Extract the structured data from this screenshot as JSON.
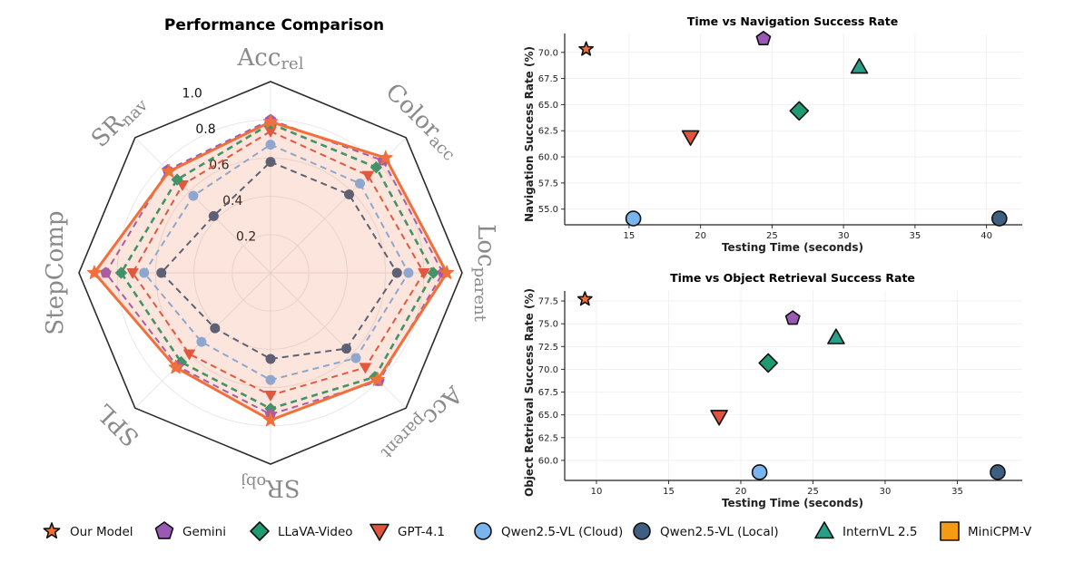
{
  "colors": {
    "Our Model": "#f0703c",
    "Gemini": "#9b59b6",
    "LLaVA-Video": "#1f9a72",
    "GPT-4.1": "#e0533f",
    "Qwen2.5-VL (Cloud)": "#7ab4ee",
    "Qwen2.5-VL (Local)": "#3f5f82",
    "InternVL 2.5": "#26a086",
    "MiniCPM-V": "#f39c12"
  },
  "chart_data": [
    {
      "type": "radar",
      "title": "Performance Comparison",
      "axes": [
        {
          "name": "Acc",
          "sub": "rel"
        },
        {
          "name": "Color",
          "sub": "acc"
        },
        {
          "name": "Loc",
          "sub": "parent"
        },
        {
          "name": "Acc",
          "sub": "parent"
        },
        {
          "name": "SR",
          "sub": "obj"
        },
        {
          "name": "SPL",
          "sub": ""
        },
        {
          "name": "StepComp",
          "sub": ""
        },
        {
          "name": "SR",
          "sub": "nav"
        }
      ],
      "rticks": [
        "0.2",
        "0.4",
        "0.6",
        "0.8",
        "1.0"
      ],
      "rlim": [
        0,
        1.0
      ],
      "series": [
        {
          "name": "Qwen2.5-VL (Local)",
          "values": [
            0.58,
            0.58,
            0.66,
            0.56,
            0.45,
            0.41,
            0.57,
            0.42
          ],
          "marker": "circle"
        },
        {
          "name": "Qwen2.5-VL (Cloud)",
          "values": [
            0.67,
            0.66,
            0.72,
            0.63,
            0.56,
            0.51,
            0.66,
            0.57
          ],
          "marker": "circle"
        },
        {
          "name": "GPT-4.1",
          "values": [
            0.74,
            0.72,
            0.8,
            0.7,
            0.64,
            0.6,
            0.72,
            0.65
          ],
          "marker": "tri_down"
        },
        {
          "name": "LLaVA-Video",
          "values": [
            0.78,
            0.78,
            0.85,
            0.77,
            0.71,
            0.66,
            0.78,
            0.69
          ],
          "marker": "diamond"
        },
        {
          "name": "Gemini",
          "values": [
            0.8,
            0.83,
            0.9,
            0.8,
            0.74,
            0.69,
            0.86,
            0.76
          ],
          "marker": "pentagon"
        },
        {
          "name": "Our Model",
          "values": [
            0.79,
            0.85,
            0.92,
            0.79,
            0.77,
            0.7,
            0.92,
            0.75
          ],
          "marker": "star"
        }
      ]
    },
    {
      "type": "scatter",
      "title": "Time vs Navigation Success Rate",
      "xlabel": "Testing Time (seconds)",
      "ylabel": "Navigation Success Rate (%)",
      "xlim": [
        10.5,
        42.5
      ],
      "ylim": [
        53.5,
        71.8
      ],
      "xticks": [
        15,
        20,
        25,
        30,
        35,
        40
      ],
      "yticks": [
        55.0,
        57.5,
        60.0,
        62.5,
        65.0,
        67.5,
        70.0
      ],
      "points": [
        {
          "name": "Our Model",
          "x": 12.0,
          "y": 70.3,
          "marker": "star"
        },
        {
          "name": "Gemini",
          "x": 24.4,
          "y": 71.3,
          "marker": "pentagon"
        },
        {
          "name": "InternVL 2.5",
          "x": 31.1,
          "y": 68.6,
          "marker": "triangle"
        },
        {
          "name": "LLaVA-Video",
          "x": 26.9,
          "y": 64.4,
          "marker": "diamond"
        },
        {
          "name": "GPT-4.1",
          "x": 19.3,
          "y": 61.9,
          "marker": "tri_down"
        },
        {
          "name": "Qwen2.5-VL (Cloud)",
          "x": 15.3,
          "y": 54.1,
          "marker": "circle"
        },
        {
          "name": "Qwen2.5-VL (Local)",
          "x": 40.9,
          "y": 54.1,
          "marker": "circle"
        }
      ]
    },
    {
      "type": "scatter",
      "title": "Time vs Object Retrieval Success Rate",
      "xlabel": "Testing Time (seconds)",
      "ylabel": "Object Retrieval Success Rate (%)",
      "xlim": [
        7.8,
        39.5
      ],
      "ylim": [
        57.8,
        78.6
      ],
      "xticks": [
        10,
        15,
        20,
        25,
        30,
        35
      ],
      "yticks": [
        60.0,
        62.5,
        65.0,
        67.5,
        70.0,
        72.5,
        75.0,
        77.5
      ],
      "points": [
        {
          "name": "Our Model",
          "x": 9.2,
          "y": 77.7,
          "marker": "star"
        },
        {
          "name": "Gemini",
          "x": 23.6,
          "y": 75.6,
          "marker": "pentagon"
        },
        {
          "name": "InternVL 2.5",
          "x": 26.6,
          "y": 73.5,
          "marker": "triangle"
        },
        {
          "name": "LLaVA-Video",
          "x": 21.9,
          "y": 70.7,
          "marker": "diamond"
        },
        {
          "name": "GPT-4.1",
          "x": 18.5,
          "y": 64.8,
          "marker": "tri_down"
        },
        {
          "name": "Qwen2.5-VL (Cloud)",
          "x": 21.3,
          "y": 58.7,
          "marker": "circle"
        },
        {
          "name": "Qwen2.5-VL (Local)",
          "x": 37.8,
          "y": 58.7,
          "marker": "circle"
        }
      ]
    }
  ],
  "legend": {
    "placement": "bottom",
    "entries": [
      {
        "label": "Our Model",
        "marker": "star"
      },
      {
        "label": "Gemini",
        "marker": "pentagon"
      },
      {
        "label": "LLaVA-Video",
        "marker": "diamond"
      },
      {
        "label": "GPT-4.1",
        "marker": "tri_down"
      },
      {
        "label": "Qwen2.5-VL (Cloud)",
        "marker": "circle"
      },
      {
        "label": "Qwen2.5-VL (Local)",
        "marker": "circle"
      },
      {
        "label": "InternVL 2.5",
        "marker": "triangle"
      },
      {
        "label": "MiniCPM-V",
        "marker": "square"
      }
    ]
  }
}
